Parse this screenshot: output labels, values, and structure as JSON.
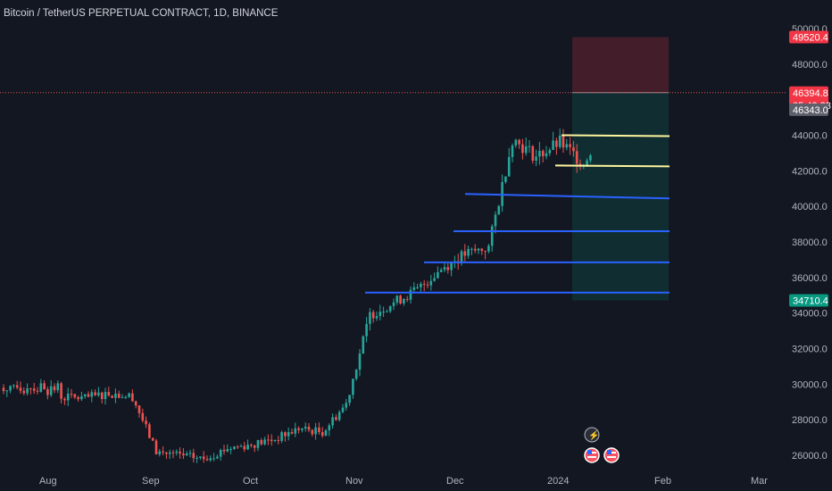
{
  "header": {
    "title": "Bitcoin / TetherUS PERPETUAL CONTRACT, 1D, BINANCE"
  },
  "price_scale": {
    "labels": [
      "50000.0",
      "48000.0",
      "46000.0",
      "44000.0",
      "42000.0",
      "40000.0",
      "38000.0",
      "36000.0",
      "34000.0",
      "32000.0",
      "30000.0",
      "28000.0",
      "26000.0"
    ],
    "target_label": "49520.4",
    "current_price": "46394.8",
    "countdown": "05:42:23",
    "secondary_price": "46343.0",
    "stop_label": "34710.4"
  },
  "time_scale": {
    "labels": [
      "Aug",
      "Sep",
      "Oct",
      "Nov",
      "Dec",
      "2024",
      "Feb",
      "Mar"
    ]
  },
  "colors": {
    "background": "#131722",
    "up": "#26a69a",
    "down": "#ef5350",
    "blue_line": "#2962ff",
    "yellow_line": "#fff59d",
    "target_zone": "rgba(242,54,69,0.22)",
    "stop_zone": "rgba(8,153,129,0.18)"
  },
  "icons": [
    "lightning-icon",
    "us-flag-icon",
    "us-flag-icon"
  ],
  "chart_data": {
    "type": "candlestick",
    "x": [
      "2023-07-25",
      "2023-08-01",
      "2023-08-08",
      "2023-08-15",
      "2023-08-22",
      "2023-08-29",
      "2023-09-05",
      "2023-09-12",
      "2023-09-19",
      "2023-09-26",
      "2023-10-03",
      "2023-10-10",
      "2023-10-17",
      "2023-10-24",
      "2023-10-31",
      "2023-11-07",
      "2023-11-14",
      "2023-11-21",
      "2023-11-28",
      "2023-12-05",
      "2023-12-12",
      "2023-12-19",
      "2023-12-26",
      "2024-01-02",
      "2024-01-09"
    ],
    "close": [
      29300,
      29200,
      29500,
      29300,
      26200,
      26000,
      25800,
      26400,
      26600,
      26900,
      27500,
      27300,
      28900,
      33900,
      34600,
      35300,
      36500,
      37300,
      37700,
      43800,
      42800,
      43600,
      42400,
      45000,
      46394.8
    ],
    "ylim": [
      25000,
      50500
    ]
  }
}
